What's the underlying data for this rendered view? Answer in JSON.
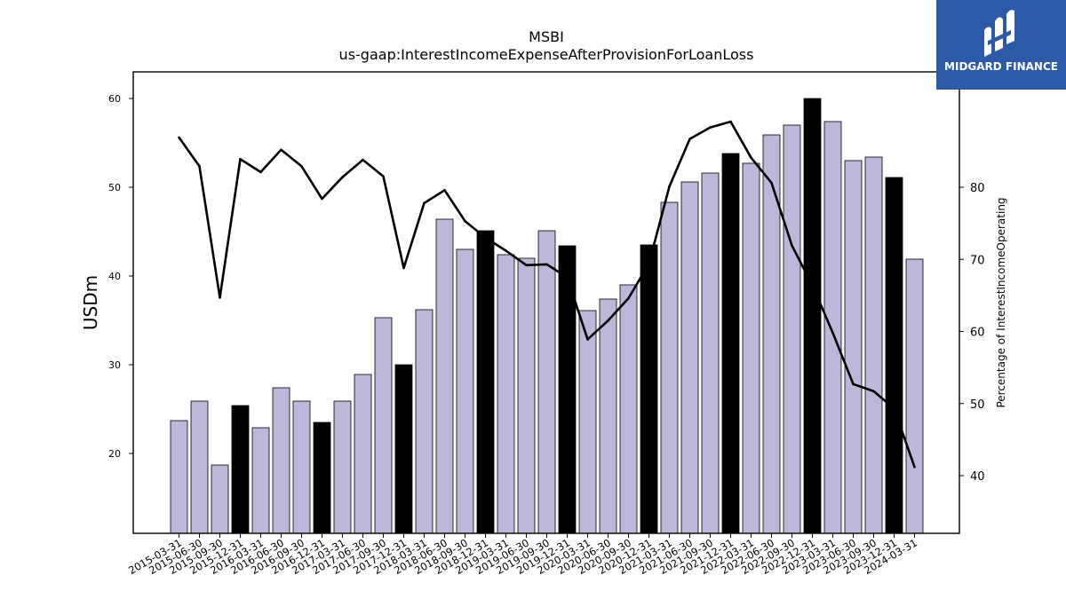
{
  "chart_data": {
    "type": "bar",
    "title": "MSBI",
    "subtitle": "us-gaap:InterestIncomeExpenseAfterProvisionForLoanLoss",
    "ylabel": "USDm",
    "y2label": "Percentage of InterestIncomeOperating",
    "ylim": [
      11,
      63
    ],
    "y2lim": [
      32,
      96
    ],
    "yticks": [
      20,
      30,
      40,
      50,
      60
    ],
    "y2ticks": [
      40,
      50,
      60,
      70,
      80
    ],
    "categories": [
      "2015-03-31",
      "2015-06-30",
      "2015-09-30",
      "2015-12-31",
      "2016-03-31",
      "2016-06-30",
      "2016-09-30",
      "2016-12-31",
      "2017-03-31",
      "2017-06-30",
      "2017-09-30",
      "2017-12-31",
      "2018-03-31",
      "2018-06-30",
      "2018-09-30",
      "2018-12-31",
      "2019-03-31",
      "2019-06-30",
      "2019-09-30",
      "2019-12-31",
      "2020-03-31",
      "2020-06-30",
      "2020-09-30",
      "2020-12-31",
      "2021-03-31",
      "2021-06-30",
      "2021-09-30",
      "2021-12-31",
      "2022-03-31",
      "2022-06-30",
      "2022-09-30",
      "2022-12-31",
      "2023-03-31",
      "2023-06-30",
      "2023-09-30",
      "2023-12-31",
      "2024-03-31"
    ],
    "series": [
      {
        "values": [
          23.7,
          25.9,
          18.7,
          25.4,
          22.9,
          27.4,
          25.9,
          23.5,
          25.9,
          28.9,
          35.3,
          30.0,
          36.2,
          46.4,
          43.0,
          45.1,
          42.4,
          42.0,
          45.1,
          43.4,
          36.1,
          37.4,
          39.0,
          43.5,
          48.3,
          50.6,
          51.6,
          53.8,
          52.7,
          55.9,
          57.0,
          60.0,
          57.4,
          53.0,
          53.4,
          51.1,
          41.9
        ],
        "highlight": [
          false,
          false,
          false,
          true,
          false,
          false,
          false,
          true,
          false,
          false,
          false,
          true,
          false,
          false,
          false,
          true,
          false,
          false,
          false,
          true,
          false,
          false,
          false,
          true,
          false,
          false,
          false,
          true,
          false,
          false,
          false,
          true,
          false,
          false,
          false,
          true,
          false
        ],
        "color": "#bcb8da",
        "highlight_color": "#000000"
      },
      {
        "axis": "right",
        "type": "line",
        "color": "#000000",
        "values": [
          86.9,
          82.9,
          64.7,
          83.9,
          82.1,
          85.2,
          82.9,
          78.4,
          81.4,
          83.8,
          81.5,
          68.8,
          77.8,
          79.6,
          75.3,
          73.0,
          71.2,
          69.2,
          69.3,
          67.5,
          58.9,
          61.5,
          64.6,
          69.4,
          80.1,
          86.7,
          88.3,
          89.1,
          84.1,
          80.6,
          71.9,
          66.4,
          59.8,
          52.7,
          51.7,
          49.3,
          41.2
        ]
      }
    ]
  },
  "logo": {
    "text": "MIDGARD FINANCE",
    "icon": "midgard-logo-icon",
    "background": "#2d5aa8"
  }
}
